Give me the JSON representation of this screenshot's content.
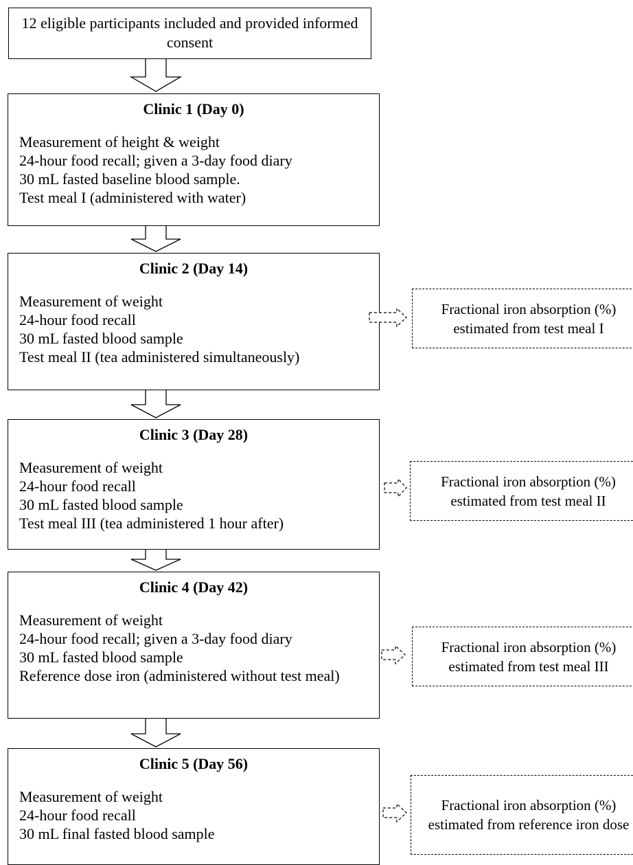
{
  "intro": {
    "text": "12 eligible participants included and provided informed consent"
  },
  "clinics": [
    {
      "title": "Clinic 1 (Day 0)",
      "lines": [
        "Measurement of height & weight",
        "24-hour food recall; given a 3-day food diary",
        "30 mL fasted baseline blood sample.",
        "Test meal I (administered with water)"
      ]
    },
    {
      "title": "Clinic 2 (Day 14)",
      "lines": [
        "Measurement of weight",
        "24-hour food recall",
        "30 mL fasted blood sample",
        "Test meal II (tea administered simultaneously)"
      ]
    },
    {
      "title": "Clinic 3 (Day 28)",
      "lines": [
        "Measurement of weight",
        "24-hour food recall",
        "30 mL fasted blood sample",
        "Test meal III (tea administered 1 hour after)"
      ]
    },
    {
      "title": "Clinic 4 (Day 42)",
      "lines": [
        "Measurement of weight",
        "24-hour food recall; given a 3-day food diary",
        "30 mL fasted blood sample",
        "Reference dose iron (administered without test meal)"
      ]
    },
    {
      "title": "Clinic 5 (Day 56)",
      "lines": [
        "Measurement of weight",
        "24-hour food recall",
        "30 mL final fasted blood sample"
      ]
    }
  ],
  "outcomes": [
    {
      "text": "Fractional iron absorption (%) estimated from test meal I"
    },
    {
      "text": "Fractional iron absorption (%) estimated from test meal II"
    },
    {
      "text": "Fractional iron absorption (%) estimated from test meal III"
    },
    {
      "text": "Fractional iron absorption (%) estimated from reference iron dose"
    }
  ]
}
